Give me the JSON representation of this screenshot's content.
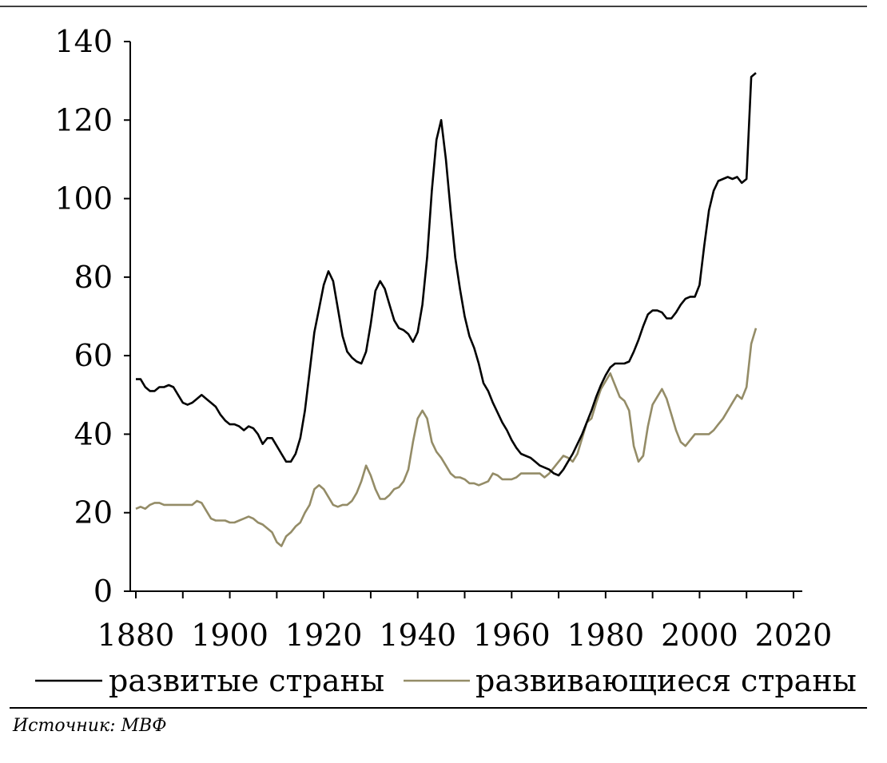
{
  "chart_data": {
    "type": "line",
    "title": "",
    "xlabel": "",
    "ylabel": "",
    "xlim": [
      1880,
      2021
    ],
    "ylim": [
      0,
      140
    ],
    "grid": false,
    "legend_position": "bottom",
    "x_ticks": [
      "1880",
      "1900",
      "1920",
      "1940",
      "1960",
      "1980",
      "2000",
      "2020"
    ],
    "y_ticks": [
      "0",
      "20",
      "40",
      "60",
      "80",
      "100",
      "120",
      "140"
    ],
    "series": [
      {
        "name": "развитые страны",
        "color": "#000000",
        "points": [
          [
            1880,
            54
          ],
          [
            1881,
            54
          ],
          [
            1882,
            52
          ],
          [
            1883,
            51
          ],
          [
            1884,
            51
          ],
          [
            1885,
            52
          ],
          [
            1886,
            52
          ],
          [
            1887,
            52.5
          ],
          [
            1888,
            52
          ],
          [
            1889,
            50
          ],
          [
            1890,
            48
          ],
          [
            1891,
            47.5
          ],
          [
            1892,
            48
          ],
          [
            1893,
            49
          ],
          [
            1894,
            50
          ],
          [
            1895,
            49
          ],
          [
            1896,
            48
          ],
          [
            1897,
            47
          ],
          [
            1898,
            45
          ],
          [
            1899,
            43.5
          ],
          [
            1900,
            42.5
          ],
          [
            1901,
            42.5
          ],
          [
            1902,
            42
          ],
          [
            1903,
            41
          ],
          [
            1904,
            42
          ],
          [
            1905,
            41.5
          ],
          [
            1906,
            40
          ],
          [
            1907,
            37.5
          ],
          [
            1908,
            39
          ],
          [
            1909,
            39
          ],
          [
            1910,
            37
          ],
          [
            1911,
            35
          ],
          [
            1912,
            33
          ],
          [
            1913,
            33
          ],
          [
            1914,
            35
          ],
          [
            1915,
            39
          ],
          [
            1916,
            46
          ],
          [
            1917,
            56
          ],
          [
            1918,
            66
          ],
          [
            1919,
            72
          ],
          [
            1920,
            78
          ],
          [
            1921,
            81.5
          ],
          [
            1922,
            79
          ],
          [
            1923,
            72
          ],
          [
            1924,
            65
          ],
          [
            1925,
            61
          ],
          [
            1926,
            59.5
          ],
          [
            1927,
            58.5
          ],
          [
            1928,
            58
          ],
          [
            1929,
            61
          ],
          [
            1930,
            68
          ],
          [
            1931,
            76.5
          ],
          [
            1932,
            79
          ],
          [
            1933,
            77
          ],
          [
            1934,
            73
          ],
          [
            1935,
            69
          ],
          [
            1936,
            67
          ],
          [
            1937,
            66.5
          ],
          [
            1938,
            65.5
          ],
          [
            1939,
            63.5
          ],
          [
            1940,
            66
          ],
          [
            1941,
            73
          ],
          [
            1942,
            85
          ],
          [
            1943,
            102
          ],
          [
            1944,
            115
          ],
          [
            1945,
            120
          ],
          [
            1946,
            110
          ],
          [
            1947,
            97
          ],
          [
            1948,
            85
          ],
          [
            1949,
            77
          ],
          [
            1950,
            70
          ],
          [
            1951,
            65
          ],
          [
            1952,
            62
          ],
          [
            1953,
            58
          ],
          [
            1954,
            53
          ],
          [
            1955,
            51
          ],
          [
            1956,
            48
          ],
          [
            1957,
            45.5
          ],
          [
            1958,
            43
          ],
          [
            1959,
            41
          ],
          [
            1960,
            38.5
          ],
          [
            1961,
            36.5
          ],
          [
            1962,
            35
          ],
          [
            1963,
            34.5
          ],
          [
            1964,
            34
          ],
          [
            1965,
            33
          ],
          [
            1966,
            32
          ],
          [
            1967,
            31.5
          ],
          [
            1968,
            31
          ],
          [
            1969,
            30
          ],
          [
            1970,
            29.5
          ],
          [
            1971,
            31
          ],
          [
            1972,
            33
          ],
          [
            1973,
            35
          ],
          [
            1974,
            37.5
          ],
          [
            1975,
            40
          ],
          [
            1976,
            43
          ],
          [
            1977,
            46
          ],
          [
            1978,
            49.5
          ],
          [
            1979,
            52.5
          ],
          [
            1980,
            55
          ],
          [
            1981,
            57
          ],
          [
            1982,
            58
          ],
          [
            1983,
            58
          ],
          [
            1984,
            58
          ],
          [
            1985,
            58.5
          ],
          [
            1986,
            61
          ],
          [
            1987,
            64
          ],
          [
            1988,
            67.5
          ],
          [
            1989,
            70.5
          ],
          [
            1990,
            71.5
          ],
          [
            1991,
            71.5
          ],
          [
            1992,
            71
          ],
          [
            1993,
            69.5
          ],
          [
            1994,
            69.5
          ],
          [
            1995,
            71
          ],
          [
            1996,
            73
          ],
          [
            1997,
            74.5
          ],
          [
            1998,
            75
          ],
          [
            1999,
            75
          ],
          [
            2000,
            78
          ],
          [
            2001,
            88
          ],
          [
            2002,
            97
          ],
          [
            2003,
            102
          ],
          [
            2004,
            104.5
          ],
          [
            2005,
            105
          ],
          [
            2006,
            105.5
          ],
          [
            2007,
            105
          ],
          [
            2008,
            105.5
          ],
          [
            2009,
            104
          ],
          [
            2010,
            105
          ],
          [
            2011,
            131
          ],
          [
            2012,
            132
          ]
        ]
      },
      {
        "name": "развивающиеся страны",
        "color": "#948c67",
        "points": [
          [
            1880,
            21
          ],
          [
            1881,
            21.5
          ],
          [
            1882,
            21
          ],
          [
            1883,
            22
          ],
          [
            1884,
            22.5
          ],
          [
            1885,
            22.5
          ],
          [
            1886,
            22
          ],
          [
            1887,
            22
          ],
          [
            1888,
            22
          ],
          [
            1889,
            22
          ],
          [
            1890,
            22
          ],
          [
            1891,
            22
          ],
          [
            1892,
            22
          ],
          [
            1893,
            23
          ],
          [
            1894,
            22.5
          ],
          [
            1895,
            20.5
          ],
          [
            1896,
            18.5
          ],
          [
            1897,
            18
          ],
          [
            1898,
            18
          ],
          [
            1899,
            18
          ],
          [
            1900,
            17.5
          ],
          [
            1901,
            17.5
          ],
          [
            1902,
            18
          ],
          [
            1903,
            18.5
          ],
          [
            1904,
            19
          ],
          [
            1905,
            18.5
          ],
          [
            1906,
            17.5
          ],
          [
            1907,
            17
          ],
          [
            1908,
            16
          ],
          [
            1909,
            15
          ],
          [
            1910,
            12.5
          ],
          [
            1911,
            11.5
          ],
          [
            1912,
            14
          ],
          [
            1913,
            15
          ],
          [
            1914,
            16.5
          ],
          [
            1915,
            17.5
          ],
          [
            1916,
            20
          ],
          [
            1917,
            22
          ],
          [
            1918,
            26
          ],
          [
            1919,
            27
          ],
          [
            1920,
            26
          ],
          [
            1921,
            24
          ],
          [
            1922,
            22
          ],
          [
            1923,
            21.5
          ],
          [
            1924,
            22
          ],
          [
            1925,
            22
          ],
          [
            1926,
            23
          ],
          [
            1927,
            25
          ],
          [
            1928,
            28
          ],
          [
            1929,
            32
          ],
          [
            1930,
            29.5
          ],
          [
            1931,
            26
          ],
          [
            1932,
            23.5
          ],
          [
            1933,
            23.5
          ],
          [
            1934,
            24.5
          ],
          [
            1935,
            26
          ],
          [
            1936,
            26.5
          ],
          [
            1937,
            28
          ],
          [
            1938,
            31
          ],
          [
            1939,
            38
          ],
          [
            1940,
            44
          ],
          [
            1941,
            46
          ],
          [
            1942,
            44
          ],
          [
            1943,
            38
          ],
          [
            1944,
            35.5
          ],
          [
            1945,
            34
          ],
          [
            1946,
            32
          ],
          [
            1947,
            30
          ],
          [
            1948,
            29
          ],
          [
            1949,
            29
          ],
          [
            1950,
            28.5
          ],
          [
            1951,
            27.5
          ],
          [
            1952,
            27.5
          ],
          [
            1953,
            27
          ],
          [
            1954,
            27.5
          ],
          [
            1955,
            28
          ],
          [
            1956,
            30
          ],
          [
            1957,
            29.5
          ],
          [
            1958,
            28.5
          ],
          [
            1959,
            28.5
          ],
          [
            1960,
            28.5
          ],
          [
            1961,
            29
          ],
          [
            1962,
            30
          ],
          [
            1963,
            30
          ],
          [
            1964,
            30
          ],
          [
            1965,
            30
          ],
          [
            1966,
            30
          ],
          [
            1967,
            29
          ],
          [
            1968,
            30
          ],
          [
            1969,
            31.5
          ],
          [
            1970,
            33
          ],
          [
            1971,
            34.5
          ],
          [
            1972,
            34
          ],
          [
            1973,
            33
          ],
          [
            1974,
            35
          ],
          [
            1975,
            39
          ],
          [
            1976,
            43
          ],
          [
            1977,
            44
          ],
          [
            1978,
            48
          ],
          [
            1979,
            51.5
          ],
          [
            1980,
            53.5
          ],
          [
            1981,
            55.5
          ],
          [
            1982,
            52.5
          ],
          [
            1983,
            49.5
          ],
          [
            1984,
            48.5
          ],
          [
            1985,
            46
          ],
          [
            1986,
            37
          ],
          [
            1987,
            33
          ],
          [
            1988,
            34.5
          ],
          [
            1989,
            42
          ],
          [
            1990,
            47.5
          ],
          [
            1991,
            49.5
          ],
          [
            1992,
            51.5
          ],
          [
            1993,
            49
          ],
          [
            1994,
            45
          ],
          [
            1995,
            41
          ],
          [
            1996,
            38
          ],
          [
            1997,
            37
          ],
          [
            1998,
            38.5
          ],
          [
            1999,
            40
          ],
          [
            2000,
            40
          ],
          [
            2001,
            40
          ],
          [
            2002,
            40
          ],
          [
            2003,
            41
          ],
          [
            2004,
            42.5
          ],
          [
            2005,
            44
          ],
          [
            2006,
            46
          ],
          [
            2007,
            48
          ],
          [
            2008,
            50
          ],
          [
            2009,
            49
          ],
          [
            2010,
            52
          ],
          [
            2011,
            63
          ],
          [
            2012,
            67
          ]
        ]
      }
    ],
    "source": "Источник: МВФ"
  }
}
